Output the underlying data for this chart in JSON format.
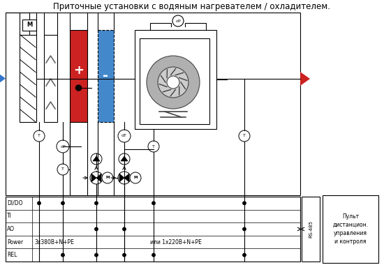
{
  "title": "Приточные установки с водяным нагревателем / охладителем.",
  "title_fontsize": 8.5,
  "bg_color": "#ffffff",
  "rows": [
    "DI/DO",
    "TI",
    "AO",
    "Power",
    "REL"
  ],
  "power_text": "3x380В+N+PE",
  "power_text2": "или 1x220В+N+PE",
  "rs485_text": "RS-485",
  "remote_text": "Пульт\nдистанцион.\nуправления\nи контроля"
}
